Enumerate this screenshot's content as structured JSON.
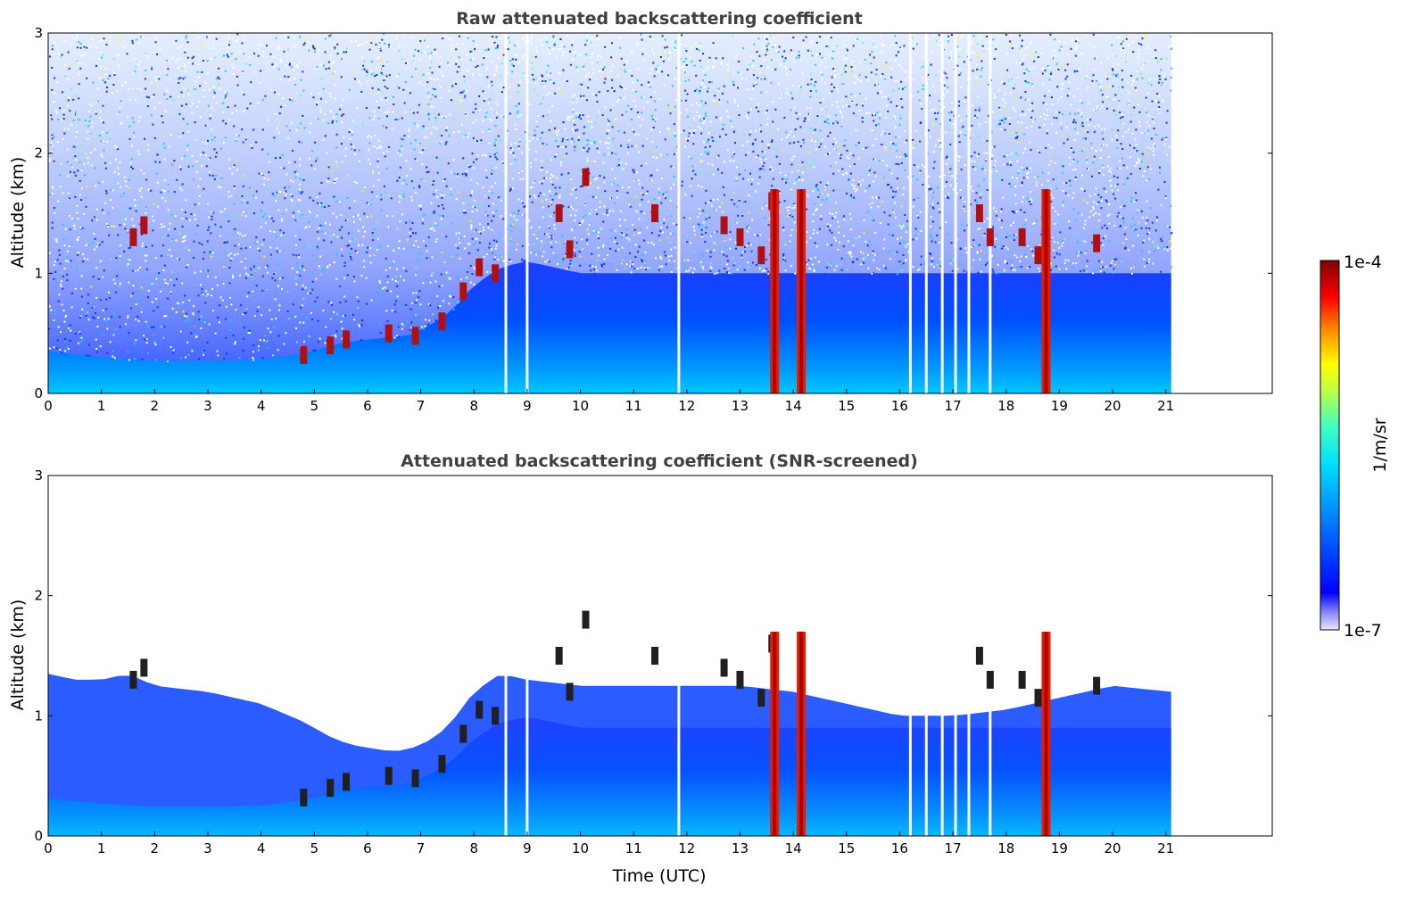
{
  "chart_data": [
    {
      "type": "heatmap",
      "title": "Raw attenuated backscattering coefficient",
      "xlabel": "",
      "ylabel": "Altitude (km)",
      "xlim": [
        0,
        23
      ],
      "ylim": [
        0,
        3
      ],
      "xticks": [
        "0",
        "1",
        "2",
        "3",
        "4",
        "5",
        "6",
        "7",
        "8",
        "9",
        "10",
        "11",
        "12",
        "13",
        "14",
        "15",
        "16",
        "17",
        "18",
        "19",
        "20",
        "21"
      ],
      "yticks": [
        "0",
        "1",
        "2",
        "3"
      ],
      "data_extent_x": [
        0,
        21.1
      ],
      "features": {
        "aerosol_layer_top": [
          [
            0,
            0.35
          ],
          [
            1,
            0.3
          ],
          [
            2,
            0.27
          ],
          [
            3,
            0.27
          ],
          [
            4,
            0.28
          ],
          [
            4.8,
            0.33
          ],
          [
            5.5,
            0.42
          ],
          [
            6,
            0.45
          ],
          [
            6.8,
            0.48
          ],
          [
            7.5,
            0.65
          ],
          [
            8,
            0.9
          ],
          [
            8.5,
            1.05
          ],
          [
            9,
            1.1
          ],
          [
            10,
            1.0
          ],
          [
            11,
            1.0
          ],
          [
            12,
            1.0
          ],
          [
            13,
            1.0
          ],
          [
            14,
            1.0
          ],
          [
            15,
            1.0
          ],
          [
            16,
            1.0
          ],
          [
            17,
            1.0
          ],
          [
            18,
            1.0
          ],
          [
            19,
            1.0
          ],
          [
            20,
            1.0
          ],
          [
            21.1,
            1.0
          ]
        ],
        "cloud_traces": [
          [
            1.6,
            1.3
          ],
          [
            1.8,
            1.4
          ],
          [
            4.8,
            0.32
          ],
          [
            5.3,
            0.4
          ],
          [
            5.6,
            0.45
          ],
          [
            6.4,
            0.5
          ],
          [
            6.9,
            0.48
          ],
          [
            7.4,
            0.6
          ],
          [
            7.8,
            0.85
          ],
          [
            8.1,
            1.05
          ],
          [
            8.4,
            1.0
          ],
          [
            9.6,
            1.5
          ],
          [
            9.8,
            1.2
          ],
          [
            10.1,
            1.8
          ],
          [
            11.4,
            1.5
          ],
          [
            12.7,
            1.4
          ],
          [
            13.0,
            1.3
          ],
          [
            13.4,
            1.15
          ],
          [
            13.6,
            1.6
          ],
          [
            17.5,
            1.5
          ],
          [
            17.7,
            1.3
          ],
          [
            18.3,
            1.3
          ],
          [
            18.6,
            1.15
          ],
          [
            19.7,
            1.25
          ]
        ],
        "precipitation_columns": [
          13.65,
          14.15,
          18.75
        ],
        "missing_profiles": [
          8.6,
          9.0,
          11.85,
          16.2,
          16.5,
          16.8,
          17.05,
          17.3,
          17.7
        ]
      }
    },
    {
      "type": "heatmap",
      "title": "Attenuated backscattering coefficient (SNR-screened)",
      "xlabel": "Time (UTC)",
      "ylabel": "Altitude (km)",
      "xlim": [
        0,
        23
      ],
      "ylim": [
        0,
        3
      ],
      "xticks": [
        "0",
        "1",
        "2",
        "3",
        "4",
        "5",
        "6",
        "7",
        "8",
        "9",
        "10",
        "11",
        "12",
        "13",
        "14",
        "15",
        "16",
        "17",
        "18",
        "19",
        "20",
        "21"
      ],
      "yticks": [
        "0",
        "1",
        "2",
        "3"
      ],
      "data_extent_x": [
        0,
        21.1
      ],
      "screened_top": [
        [
          0,
          1.35
        ],
        [
          0.5,
          1.3
        ],
        [
          1,
          1.3
        ],
        [
          1.5,
          1.35
        ],
        [
          2,
          1.25
        ],
        [
          3,
          1.2
        ],
        [
          4,
          1.1
        ],
        [
          4.8,
          0.95
        ],
        [
          5.4,
          0.8
        ],
        [
          5.8,
          0.75
        ],
        [
          6.5,
          0.7
        ],
        [
          7,
          0.75
        ],
        [
          7.5,
          0.9
        ],
        [
          8,
          1.2
        ],
        [
          8.5,
          1.35
        ],
        [
          9,
          1.3
        ],
        [
          10,
          1.25
        ],
        [
          11,
          1.25
        ],
        [
          12,
          1.25
        ],
        [
          13,
          1.25
        ],
        [
          14,
          1.2
        ],
        [
          15,
          1.1
        ],
        [
          16,
          1.0
        ],
        [
          17,
          1.0
        ],
        [
          18,
          1.05
        ],
        [
          19,
          1.15
        ],
        [
          20,
          1.25
        ],
        [
          21.1,
          1.2
        ]
      ]
    }
  ],
  "colorbar": {
    "label": "1/m/sr",
    "max_label": "1e-4",
    "min_label": "1e-7",
    "scale": "log",
    "colormap": "jet",
    "colors": [
      "#e8e8ff",
      "#0000ff",
      "#00a0ff",
      "#00ffff",
      "#80ff80",
      "#ffff00",
      "#ff8000",
      "#ff0000",
      "#800000"
    ]
  }
}
